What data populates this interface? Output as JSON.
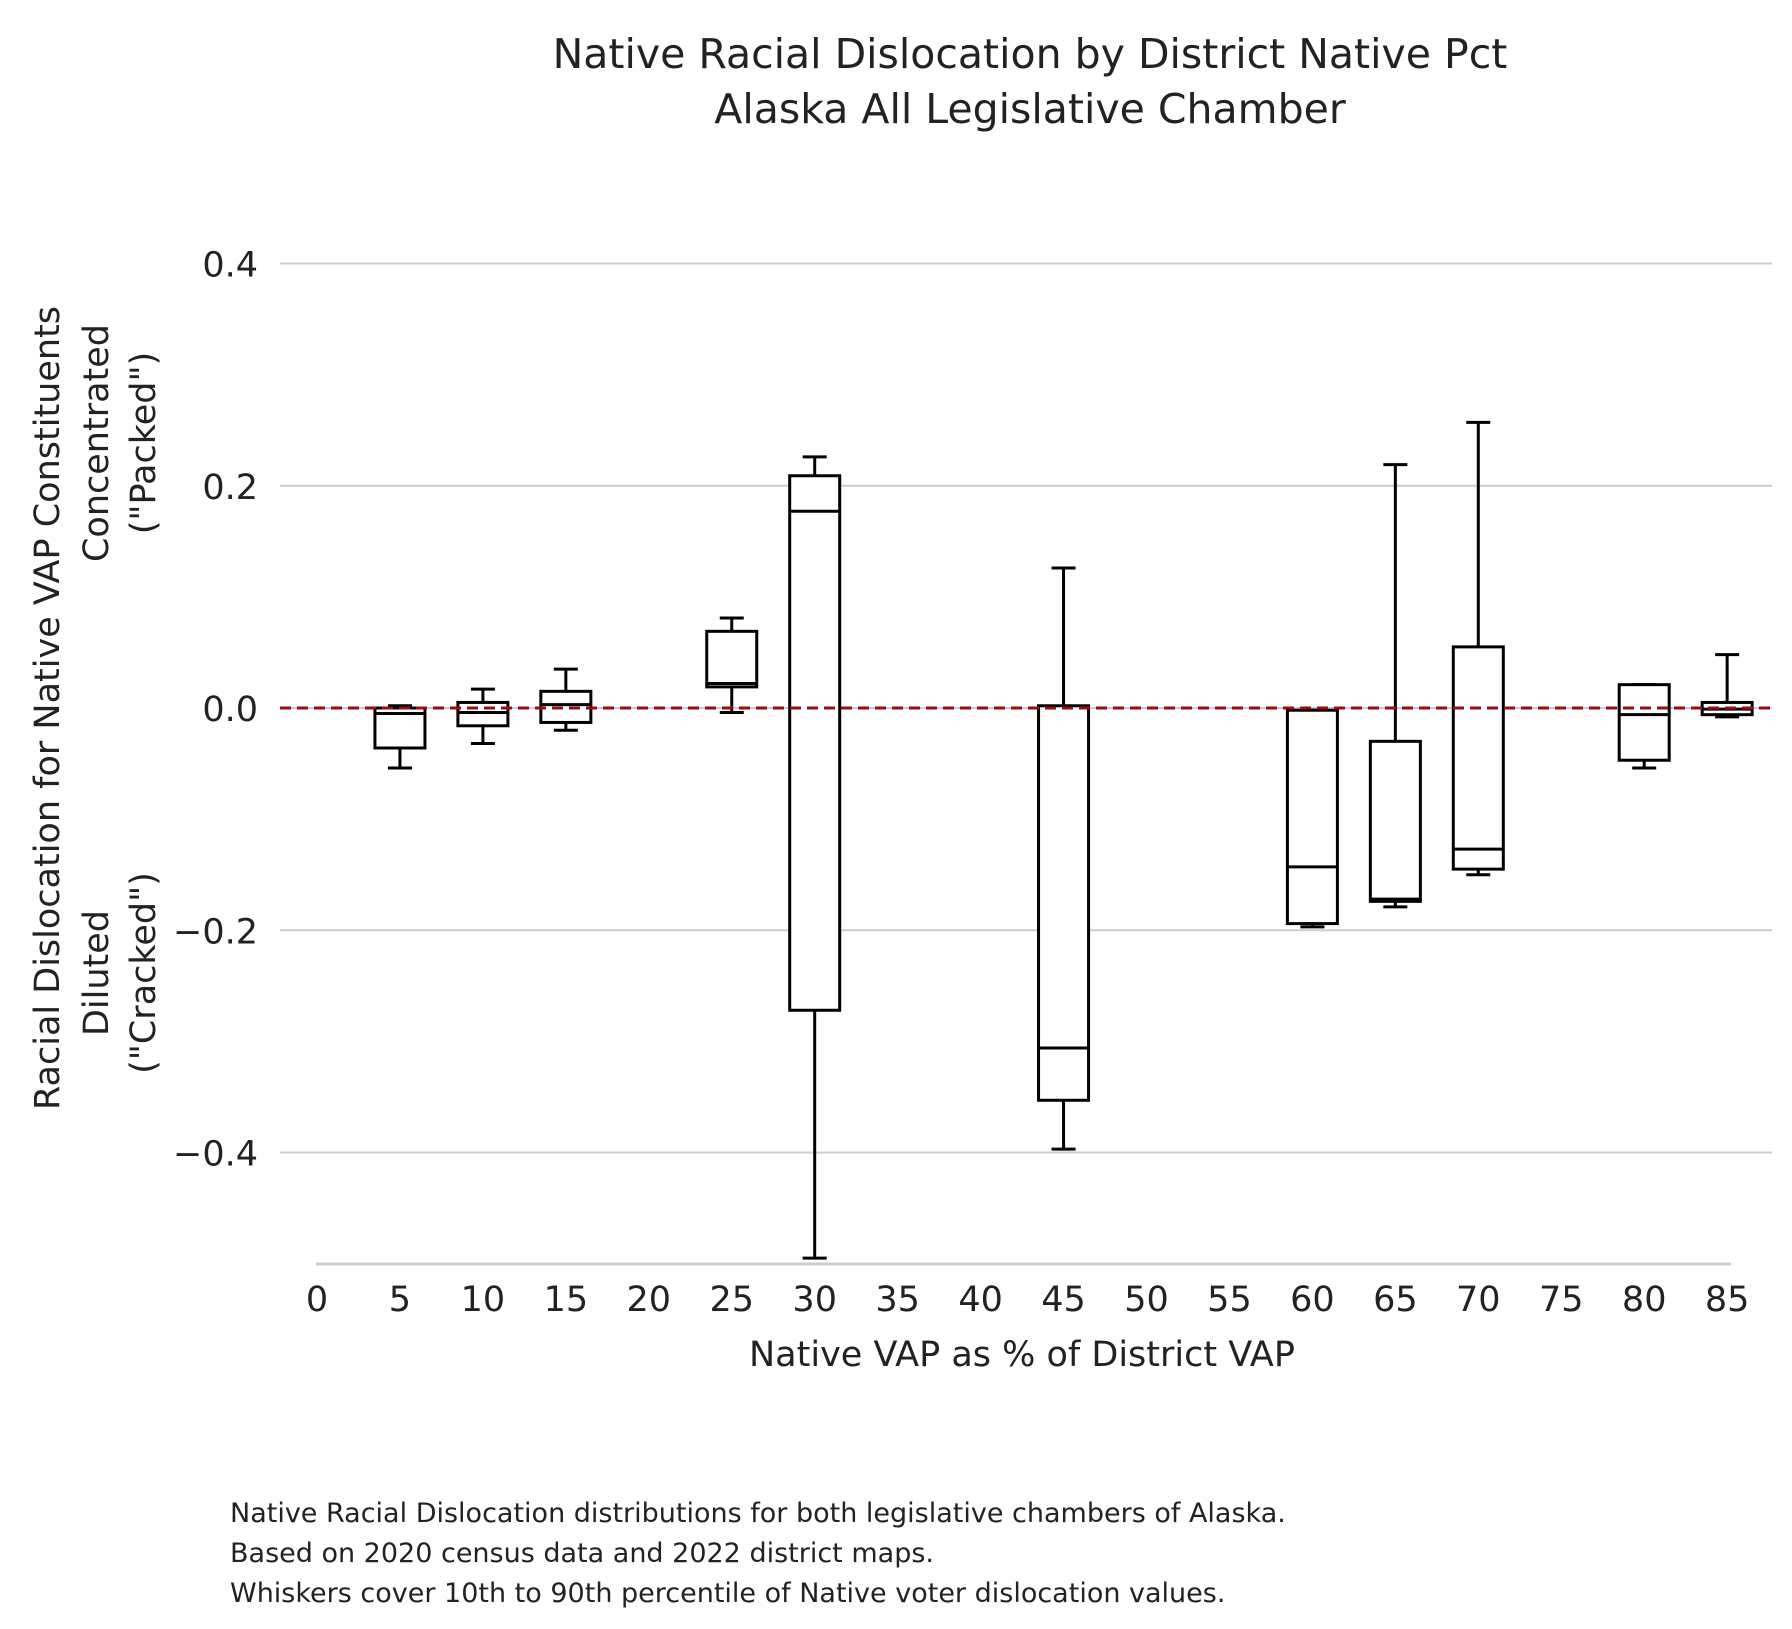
{
  "chart_data": {
    "type": "box",
    "title": "Native Racial Dislocation by District Native Pct",
    "subtitle": "Alaska All Legislative Chamber",
    "xlabel": "Native VAP as % of District VAP",
    "ylabel_lines": [
      "Racial Dislocation for Native VAP Constituents",
      "Concentrated",
      "(\"Packed\")",
      "Diluted",
      "(\"Cracked\")"
    ],
    "ylim": [
      -0.5,
      0.4
    ],
    "xlim": [
      0,
      85
    ],
    "y_ticks": [
      0.4,
      0.2,
      0.0,
      -0.2,
      -0.4
    ],
    "y_tick_labels": [
      "0.4",
      "0.2",
      "0.0",
      "−0.2",
      "−0.4"
    ],
    "x_ticks": [
      0,
      5,
      10,
      15,
      20,
      25,
      30,
      35,
      40,
      45,
      50,
      55,
      60,
      65,
      70,
      75,
      80,
      85
    ],
    "x_tick_labels": [
      "0",
      "5",
      "10",
      "15",
      "20",
      "25",
      "30",
      "35",
      "40",
      "45",
      "50",
      "55",
      "60",
      "65",
      "70",
      "75",
      "80",
      "85"
    ],
    "reference_line": {
      "y": 0.0,
      "color": "#9b0d0d",
      "style": "dashed"
    },
    "grid": "horizontal",
    "box_color": "#000000",
    "boxes": [
      {
        "x": 5,
        "whisker_low": -0.054,
        "q1": -0.036,
        "median": -0.005,
        "q3": 0.0,
        "whisker_high": 0.002
      },
      {
        "x": 10,
        "whisker_low": -0.032,
        "q1": -0.016,
        "median": -0.004,
        "q3": 0.005,
        "whisker_high": 0.017
      },
      {
        "x": 15,
        "whisker_low": -0.02,
        "q1": -0.013,
        "median": 0.003,
        "q3": 0.015,
        "whisker_high": 0.035
      },
      {
        "x": 25,
        "whisker_low": -0.004,
        "q1": 0.019,
        "median": 0.022,
        "q3": 0.069,
        "whisker_high": 0.081
      },
      {
        "x": 30,
        "whisker_low": -0.495,
        "q1": -0.272,
        "median": 0.177,
        "q3": 0.209,
        "whisker_high": 0.226
      },
      {
        "x": 45,
        "whisker_low": -0.397,
        "q1": -0.353,
        "median": -0.306,
        "q3": 0.002,
        "whisker_high": 0.126
      },
      {
        "x": 60,
        "whisker_low": -0.197,
        "q1": -0.194,
        "median": -0.143,
        "q3": -0.002,
        "whisker_high": -0.002
      },
      {
        "x": 65,
        "whisker_low": -0.179,
        "q1": -0.174,
        "median": -0.172,
        "q3": -0.03,
        "whisker_high": 0.219
      },
      {
        "x": 70,
        "whisker_low": -0.15,
        "q1": -0.145,
        "median": -0.127,
        "q3": 0.055,
        "whisker_high": 0.257
      },
      {
        "x": 80,
        "whisker_low": -0.054,
        "q1": -0.047,
        "median": -0.006,
        "q3": 0.021,
        "whisker_high": 0.021
      },
      {
        "x": 85,
        "whisker_low": -0.008,
        "q1": -0.006,
        "median": -0.001,
        "q3": 0.005,
        "whisker_high": 0.048
      }
    ]
  },
  "footnote": {
    "line1": "Native Racial Dislocation distributions for both legislative chambers of Alaska.",
    "line2": "Based on 2020 census data and 2022 district maps.",
    "line3": "Whiskers cover 10th to 90th percentile of Native voter dislocation values."
  }
}
